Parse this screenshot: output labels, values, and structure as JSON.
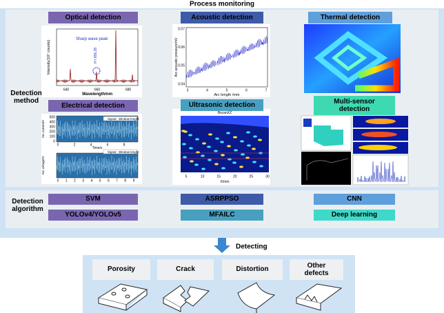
{
  "title": "Process monitoring",
  "method_label": "Detection method",
  "algorithm_label": "Detection algorithm",
  "methods": [
    {
      "label": "Optical detection",
      "plot": {
        "annotation": "Sharp wave peak",
        "peak": "H I 656.28",
        "ylabel": "Intensity(10⁴ counts)",
        "xlabel": "Wavelength/nm",
        "xticks": [
          "640",
          "660",
          "680"
        ]
      }
    },
    {
      "label": "Acoustic detection",
      "plot": {
        "ylabel": "Arc acoustic pressure/mV",
        "xlabel": "Arc length /mm",
        "yticks": [
          "0.07",
          "0.06",
          "0.05",
          "0.04"
        ],
        "xticks": [
          "3",
          "4",
          "5",
          "6",
          "7"
        ]
      }
    },
    {
      "label": "Thermal detection"
    },
    {
      "label": "Electrical detection",
      "plot": {
        "ylabel_top": "Arc current/A",
        "ylabel_bottom": "Arc voltage/V",
        "xlabel": "Time/s",
        "legend": [
          "Signal",
          "Window lenght"
        ],
        "yticks": [
          "500",
          "400",
          "300",
          "200",
          "100",
          "0"
        ],
        "xticks_top": [
          "0",
          "2",
          "4",
          "6",
          "8"
        ],
        "xticks_bottom": [
          "0",
          "1",
          "2",
          "3",
          "4",
          "5",
          "6",
          "7",
          "8",
          "9"
        ]
      }
    },
    {
      "label": "Ultrasonic detection",
      "plot": {
        "title": "BscanXZ",
        "xlabel": "X/mm",
        "xticks": [
          "5",
          "10",
          "15",
          "20",
          "25",
          "30"
        ]
      }
    },
    {
      "label": "Multi-sensor detection"
    }
  ],
  "algorithms": [
    "SVM",
    "ASRPPSO",
    "CNN",
    "YOLOv4/YOLOv5",
    "MFAILC",
    "Deep learning"
  ],
  "next_step": "Detecting",
  "defects": [
    "Porosity",
    "Crack",
    "Distortion",
    "Other defects"
  ]
}
